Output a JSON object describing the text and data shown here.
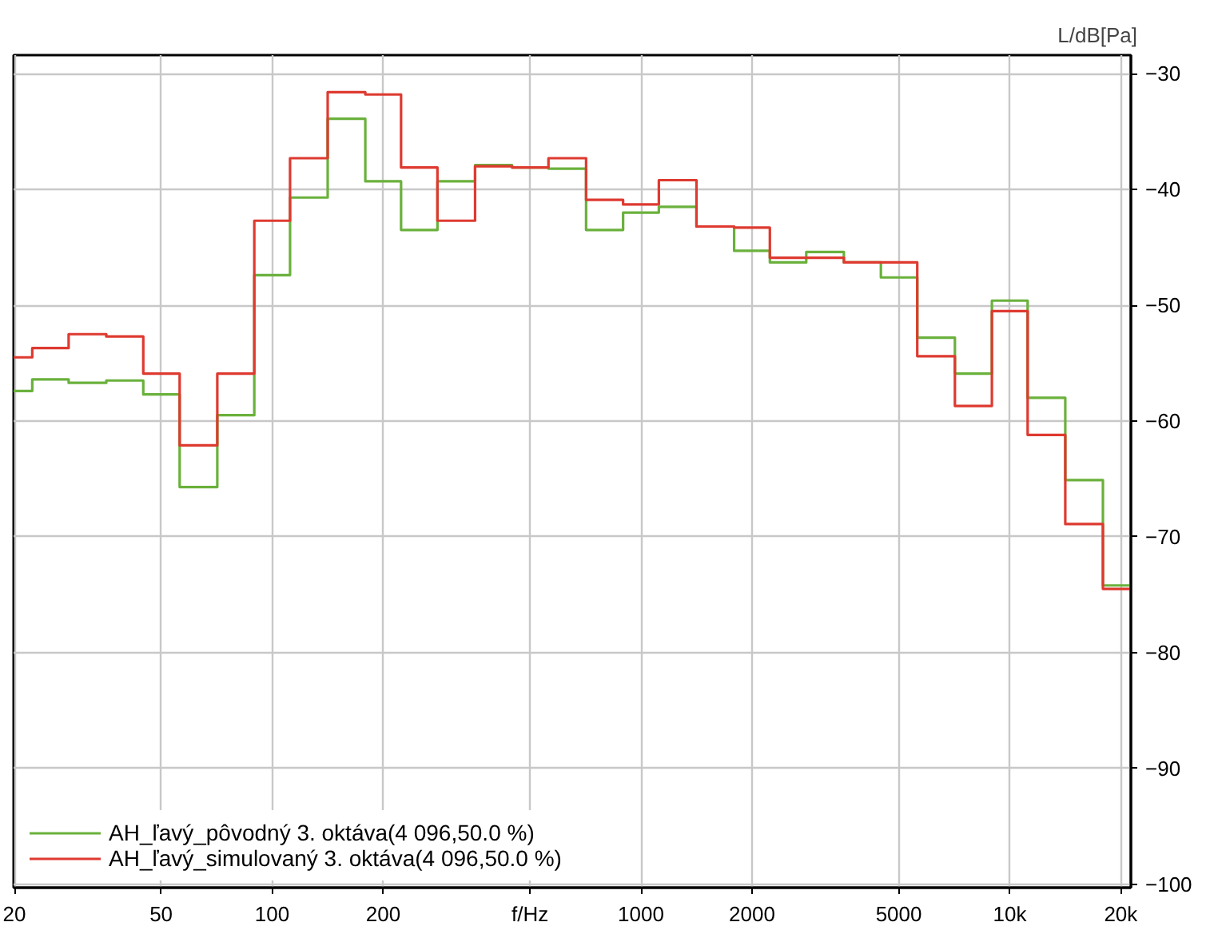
{
  "chart_data": {
    "type": "step",
    "ylabel": "L/dB[Pa]",
    "x": [
      20,
      25,
      31.5,
      40,
      50,
      63,
      80,
      100,
      125,
      160,
      200,
      250,
      315,
      400,
      500,
      630,
      800,
      1000,
      1250,
      1600,
      2000,
      2500,
      3150,
      4000,
      5000,
      6300,
      8000,
      10000,
      12500,
      16000,
      20000
    ],
    "series": [
      {
        "name": "AH_ľavý_pôvodný 3. oktáva(4 096,50.0 %)",
        "color": "#6ab13c",
        "values": [
          -57.4,
          -56.4,
          -56.7,
          -56.5,
          -57.7,
          -65.7,
          -59.5,
          -47.4,
          -40.7,
          -33.9,
          -39.3,
          -43.5,
          -39.3,
          -37.9,
          -38.1,
          -38.2,
          -43.5,
          -42.0,
          -41.5,
          -43.2,
          -45.3,
          -46.3,
          -45.4,
          -46.3,
          -47.6,
          -52.8,
          -55.9,
          -49.6,
          -58.0,
          -65.1,
          -74.2
        ]
      },
      {
        "name": "AH_ľavý_simulovaný 3. oktáva(4 096,50.0 %)",
        "color": "#de3a30",
        "values": [
          -54.5,
          -53.7,
          -52.5,
          -52.7,
          -55.9,
          -62.1,
          -55.9,
          -42.7,
          -37.3,
          -31.6,
          -31.8,
          -38.1,
          -42.7,
          -38.0,
          -38.1,
          -37.3,
          -40.9,
          -41.3,
          -39.2,
          -43.2,
          -43.3,
          -45.9,
          -45.9,
          -46.3,
          -46.3,
          -54.4,
          -58.7,
          -50.5,
          -61.2,
          -68.9,
          -74.5
        ]
      }
    ],
    "log": "x",
    "xlim": [
      19.9,
      21300
    ],
    "ylim": [
      -100.3,
      -28.4
    ],
    "xticks": [
      20,
      50,
      100,
      200,
      {
        "value": 500,
        "label": "f/Hz"
      },
      1000,
      2000,
      5000,
      {
        "value": 10000,
        "label": "10k"
      },
      {
        "value": 20000,
        "label": "20k"
      }
    ],
    "yticks": [
      -30,
      -40,
      -50,
      -60,
      -70,
      -80,
      -90,
      -100
    ],
    "grid": true,
    "legend": "bottom left"
  }
}
